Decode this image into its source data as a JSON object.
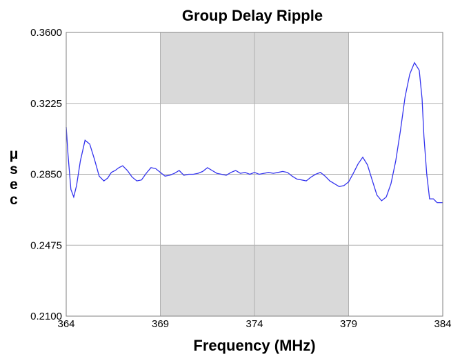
{
  "chart_data": {
    "type": "line",
    "title": "Group Delay Ripple",
    "xlabel": "Frequency (MHz)",
    "ylabel": "μsec",
    "xlim": [
      364,
      384
    ],
    "ylim": [
      0.21,
      0.36
    ],
    "x_ticks": [
      364,
      369,
      374,
      379,
      384
    ],
    "x_tick_labels": [
      "364",
      "369",
      "374",
      "379",
      "384"
    ],
    "y_ticks": [
      0.21,
      0.2475,
      0.285,
      0.3225,
      0.36
    ],
    "y_tick_labels": [
      "0.2100",
      "0.2475",
      "0.2850",
      "0.3225",
      "0.3600"
    ],
    "grid": true,
    "mask_regions": [
      {
        "x": [
          369,
          379
        ],
        "y": [
          0.3225,
          0.36
        ]
      },
      {
        "x": [
          369,
          379
        ],
        "y": [
          0.21,
          0.2475
        ]
      }
    ],
    "mask_color": "#d9d9d9",
    "line_color": "#3333ee",
    "series": [
      {
        "x": [
          364.0,
          364.1,
          364.25,
          364.4,
          364.55,
          364.75,
          365.0,
          365.25,
          365.5,
          365.75,
          366.0,
          366.2,
          366.4,
          366.6,
          366.8,
          367.0,
          367.25,
          367.5,
          367.75,
          368.0,
          368.25,
          368.5,
          368.75,
          369.0,
          369.25,
          369.5,
          369.75,
          370.0,
          370.25,
          370.5,
          370.75,
          371.0,
          371.25,
          371.5,
          371.75,
          372.0,
          372.25,
          372.5,
          372.75,
          373.0,
          373.25,
          373.5,
          373.75,
          374.0,
          374.25,
          374.5,
          374.75,
          375.0,
          375.25,
          375.5,
          375.75,
          376.0,
          376.25,
          376.5,
          376.75,
          377.0,
          377.25,
          377.5,
          377.75,
          378.0,
          378.25,
          378.5,
          378.75,
          379.0,
          379.25,
          379.5,
          379.75,
          380.0,
          380.25,
          380.5,
          380.75,
          381.0,
          381.25,
          381.5,
          381.75,
          382.0,
          382.25,
          382.5,
          382.75,
          382.9,
          383.0,
          383.15,
          383.3,
          383.5,
          383.7,
          383.9,
          384.0
        ],
        "y": [
          0.31,
          0.295,
          0.277,
          0.273,
          0.279,
          0.292,
          0.303,
          0.301,
          0.293,
          0.284,
          0.2815,
          0.283,
          0.286,
          0.287,
          0.2885,
          0.2895,
          0.287,
          0.2835,
          0.2815,
          0.282,
          0.2855,
          0.2885,
          0.288,
          0.286,
          0.284,
          0.2845,
          0.2855,
          0.287,
          0.2845,
          0.285,
          0.285,
          0.2855,
          0.2865,
          0.2885,
          0.287,
          0.2855,
          0.285,
          0.2845,
          0.286,
          0.287,
          0.2855,
          0.286,
          0.285,
          0.286,
          0.285,
          0.2855,
          0.286,
          0.2855,
          0.286,
          0.2865,
          0.286,
          0.284,
          0.2825,
          0.282,
          0.2815,
          0.2835,
          0.285,
          0.286,
          0.284,
          0.2815,
          0.28,
          0.2785,
          0.279,
          0.281,
          0.2855,
          0.2905,
          0.294,
          0.29,
          0.282,
          0.274,
          0.271,
          0.273,
          0.28,
          0.292,
          0.308,
          0.326,
          0.338,
          0.344,
          0.34,
          0.325,
          0.305,
          0.285,
          0.272,
          0.272,
          0.27,
          0.27,
          0.27
        ]
      }
    ]
  }
}
